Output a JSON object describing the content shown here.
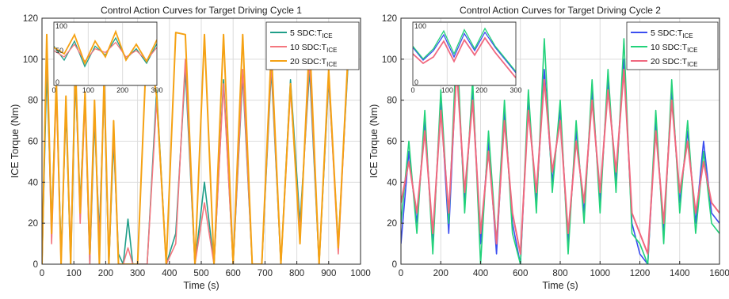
{
  "chart_data": [
    {
      "type": "line",
      "title": "Control Action Curves for Target Driving Cycle 1",
      "xlabel": "Time (s)",
      "ylabel": "ICE Torque (Nm)",
      "xlim": [
        0,
        1000
      ],
      "ylim": [
        0,
        120
      ],
      "xticks": [
        0,
        100,
        200,
        300,
        400,
        500,
        600,
        700,
        800,
        900,
        1000
      ],
      "yticks": [
        0,
        20,
        40,
        60,
        80,
        100,
        120
      ],
      "grid": true,
      "legend_position": "top-right",
      "legend": [
        {
          "base": "5 SDC:T",
          "sub": "ICE"
        },
        {
          "base": "10 SDC:T",
          "sub": "ICE"
        },
        {
          "base": "20 SDC:T",
          "sub": "ICE"
        }
      ],
      "series_colors": [
        "#1f9e89",
        "#f4777f",
        "#f5a214"
      ],
      "inset": {
        "xlim": [
          0,
          300
        ],
        "ylim": [
          0,
          100
        ],
        "xticks": [
          0,
          100,
          200,
          300
        ],
        "yticks": [
          0,
          50,
          100
        ],
        "tick_labels": [
          "0",
          "100",
          "200",
          "300"
        ],
        "ytick_labels": [
          "0",
          "50",
          "100"
        ]
      },
      "series": [
        {
          "x": [
            0,
            15,
            30,
            45,
            60,
            75,
            90,
            105,
            120,
            135,
            150,
            165,
            180,
            195,
            210,
            225,
            240,
            255,
            270,
            285,
            300,
            330,
            360,
            390,
            420,
            450,
            480,
            510,
            540,
            570,
            600,
            630,
            660,
            690,
            720,
            750,
            780,
            810,
            840,
            870,
            900,
            930,
            960
          ],
          "y": [
            0,
            95,
            20,
            88,
            5,
            75,
            0,
            90,
            30,
            82,
            0,
            70,
            15,
            85,
            0,
            60,
            5,
            0,
            22,
            0,
            0,
            0,
            85,
            0,
            15,
            95,
            0,
            40,
            0,
            90,
            0,
            92,
            0,
            0,
            95,
            0,
            90,
            20,
            95,
            0,
            90,
            10,
            95
          ]
        },
        {
          "x": [
            0,
            15,
            30,
            45,
            60,
            75,
            90,
            105,
            120,
            135,
            150,
            165,
            180,
            195,
            210,
            225,
            240,
            255,
            270,
            285,
            300,
            330,
            360,
            390,
            420,
            450,
            480,
            510,
            540,
            570,
            600,
            630,
            660,
            690,
            720,
            750,
            780,
            810,
            840,
            870,
            900,
            930,
            960
          ],
          "y": [
            0,
            108,
            10,
            85,
            0,
            78,
            5,
            95,
            20,
            80,
            0,
            75,
            10,
            88,
            0,
            65,
            0,
            0,
            8,
            0,
            0,
            0,
            80,
            0,
            10,
            100,
            0,
            30,
            0,
            88,
            0,
            95,
            0,
            0,
            98,
            0,
            85,
            15,
            100,
            0,
            92,
            5,
            98
          ]
        },
        {
          "x": [
            0,
            15,
            30,
            45,
            60,
            75,
            90,
            105,
            120,
            135,
            150,
            165,
            180,
            195,
            210,
            225,
            240,
            255,
            270,
            285,
            300,
            330,
            360,
            390,
            420,
            450,
            480,
            510,
            540,
            570,
            600,
            630,
            660,
            690,
            720,
            750,
            780,
            810,
            840,
            870,
            900,
            930,
            960
          ],
          "y": [
            0,
            112,
            15,
            90,
            0,
            82,
            0,
            98,
            25,
            84,
            5,
            80,
            0,
            92,
            0,
            70,
            0,
            0,
            0,
            0,
            0,
            112,
            82,
            0,
            113,
            112,
            0,
            112,
            0,
            112,
            0,
            112,
            0,
            0,
            105,
            0,
            88,
            10,
            110,
            0,
            95,
            8,
            100
          ]
        }
      ]
    },
    {
      "type": "line",
      "title": "Control Action Curves for Target Driving Cycle 2",
      "xlabel": "Time (s)",
      "ylabel": "ICE Torque (Nm)",
      "xlim": [
        0,
        1600
      ],
      "ylim": [
        0,
        120
      ],
      "xticks": [
        0,
        200,
        400,
        600,
        800,
        1000,
        1200,
        1400,
        1600
      ],
      "yticks": [
        0,
        20,
        40,
        60,
        80,
        100,
        120
      ],
      "grid": true,
      "legend_position": "top-right",
      "legend": [
        {
          "base": "5 SDC:T",
          "sub": "ICE"
        },
        {
          "base": "10 SDC:T",
          "sub": "ICE"
        },
        {
          "base": "20 SDC:T",
          "sub": "ICE"
        }
      ],
      "series_colors": [
        "#3b4ef0",
        "#22d27a",
        "#f0687f"
      ],
      "inset": {
        "xlim": [
          0,
          300
        ],
        "ylim": [
          0,
          100
        ],
        "xticks": [
          0,
          100,
          200,
          300
        ],
        "yticks": [
          0,
          100
        ],
        "tick_labels": [
          "0",
          "100",
          "200",
          "300"
        ],
        "ytick_labels": [
          "0",
          "100"
        ]
      },
      "series": [
        {
          "x": [
            0,
            40,
            80,
            120,
            160,
            200,
            240,
            280,
            320,
            360,
            400,
            440,
            480,
            520,
            560,
            600,
            640,
            680,
            720,
            760,
            800,
            840,
            880,
            920,
            960,
            1000,
            1040,
            1080,
            1120,
            1160,
            1200,
            1240,
            1280,
            1320,
            1360,
            1400,
            1440,
            1480,
            1520,
            1560,
            1600
          ],
          "y": [
            10,
            55,
            20,
            70,
            10,
            80,
            15,
            100,
            30,
            85,
            10,
            60,
            5,
            75,
            20,
            0,
            80,
            30,
            95,
            40,
            75,
            10,
            65,
            25,
            85,
            30,
            90,
            40,
            100,
            20,
            5,
            0,
            70,
            15,
            85,
            30,
            65,
            20,
            60,
            25,
            20
          ]
        },
        {
          "x": [
            0,
            40,
            80,
            120,
            160,
            200,
            240,
            280,
            320,
            360,
            400,
            440,
            480,
            520,
            560,
            600,
            640,
            680,
            720,
            760,
            800,
            840,
            880,
            920,
            960,
            1000,
            1040,
            1080,
            1120,
            1160,
            1200,
            1240,
            1280,
            1320,
            1360,
            1400,
            1440,
            1480,
            1520,
            1560,
            1600
          ],
          "y": [
            20,
            60,
            15,
            75,
            5,
            85,
            20,
            110,
            25,
            90,
            0,
            65,
            10,
            80,
            15,
            0,
            85,
            25,
            110,
            35,
            80,
            5,
            70,
            20,
            90,
            25,
            95,
            35,
            110,
            15,
            10,
            0,
            75,
            10,
            90,
            25,
            70,
            15,
            55,
            20,
            15
          ]
        },
        {
          "x": [
            0,
            40,
            80,
            120,
            160,
            200,
            240,
            280,
            320,
            360,
            400,
            440,
            480,
            520,
            560,
            600,
            640,
            680,
            720,
            760,
            800,
            840,
            880,
            920,
            960,
            1000,
            1040,
            1080,
            1120,
            1160,
            1200,
            1240,
            1280,
            1320,
            1360,
            1400,
            1440,
            1480,
            1520,
            1560,
            1600
          ],
          "y": [
            30,
            50,
            25,
            65,
            15,
            75,
            25,
            95,
            35,
            80,
            15,
            55,
            10,
            70,
            25,
            5,
            75,
            35,
            90,
            45,
            70,
            15,
            60,
            30,
            80,
            35,
            85,
            45,
            95,
            25,
            15,
            5,
            65,
            20,
            80,
            35,
            60,
            25,
            50,
            30,
            25
          ]
        }
      ]
    }
  ]
}
